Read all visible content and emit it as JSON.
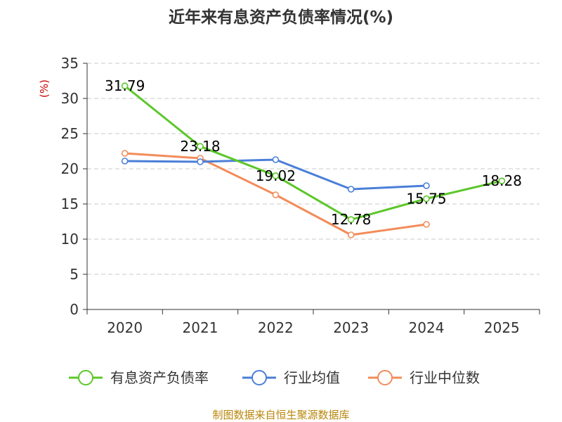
{
  "chart_data": {
    "type": "line",
    "title": "近年来有息资产负债率情况(%)",
    "ylabel": "(%)",
    "xlabel": "",
    "categories": [
      "2020",
      "2021",
      "2022",
      "2023",
      "2024",
      "2025"
    ],
    "ylim": [
      0,
      35
    ],
    "yticks": [
      0,
      5,
      10,
      15,
      20,
      25,
      30,
      35
    ],
    "grid": "horizontal-dashed",
    "legend_position": "bottom",
    "series": [
      {
        "name": "有息资产负债率",
        "color": "#5cc72a",
        "values": [
          31.79,
          23.18,
          19.02,
          12.78,
          15.75,
          18.28
        ],
        "labels": [
          "31.79",
          "23.18",
          "19.02",
          "12.78",
          "15.75",
          "18.28"
        ]
      },
      {
        "name": "行业均值",
        "color": "#4a7fd8",
        "values": [
          21.1,
          21.0,
          21.3,
          17.1,
          17.6,
          null
        ]
      },
      {
        "name": "行业中位数",
        "color": "#f28c5a",
        "values": [
          22.2,
          21.5,
          16.3,
          10.6,
          12.1,
          null
        ]
      }
    ]
  },
  "source": "制图数据来自恒生聚源数据库"
}
